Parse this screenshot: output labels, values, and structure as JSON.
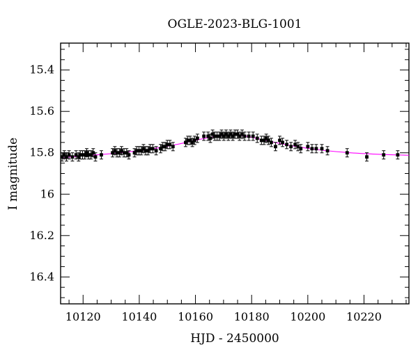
{
  "chart_data": {
    "type": "scatter",
    "title": "OGLE-2023-BLG-1001",
    "xlabel": "HJD - 2450000",
    "ylabel": "I magnitude",
    "xlim": [
      10112,
      10236
    ],
    "ylim": [
      16.53,
      15.27
    ],
    "y_inverted": true,
    "grid": false,
    "xticks": [
      10120,
      10140,
      10160,
      10180,
      10200,
      10220
    ],
    "yticks": [
      15.4,
      15.6,
      15.8,
      16,
      16.2,
      16.4
    ],
    "xtick_labels": [
      "10120",
      "10140",
      "10160",
      "10180",
      "10200",
      "10220"
    ],
    "ytick_labels": [
      "15.4",
      "15.6",
      "15.8",
      "16",
      "16.2",
      "16.4"
    ],
    "colors": {
      "points": "#000000",
      "model": "#ff00ff"
    },
    "series": [
      {
        "type": "scatter",
        "x": [
          10112.5,
          10113.3,
          10114.1,
          10115.0,
          10116.2,
          10117.5,
          10118.4,
          10119.0,
          10119.8,
          10120.6,
          10121.3,
          10122.0,
          10122.8,
          10123.6,
          10124.4,
          10126.5,
          10130.5,
          10131.3,
          10132.1,
          10132.9,
          10133.7,
          10134.6,
          10135.5,
          10136.3,
          10138.3,
          10139.1,
          10139.9,
          10140.7,
          10141.5,
          10142.3,
          10143.1,
          10143.9,
          10144.8,
          10146.0,
          10147.6,
          10148.4,
          10149.2,
          10150.0,
          10150.9,
          10152.0,
          10156.5,
          10157.3,
          10158.1,
          10158.9,
          10159.7,
          10160.7,
          10163.0,
          10164.5,
          10165.3,
          10166.1,
          10166.9,
          10167.7,
          10168.5,
          10169.3,
          10170.1,
          10170.9,
          10171.7,
          10172.5,
          10173.3,
          10174.1,
          10174.9,
          10175.7,
          10176.6,
          10177.5,
          10179.0,
          10180.5,
          10182.0,
          10183.5,
          10184.4,
          10185.2,
          10186.0,
          10187.0,
          10188.5,
          10190.0,
          10191.0,
          10192.5,
          10194.0,
          10195.5,
          10196.5,
          10197.5,
          10200.0,
          10201.5,
          10203.0,
          10205.0,
          10207.0,
          10214.0,
          10221.0,
          10227.0,
          10232.0
        ],
        "y": [
          15.82,
          15.81,
          15.82,
          15.81,
          15.82,
          15.81,
          15.82,
          15.81,
          15.81,
          15.81,
          15.8,
          15.81,
          15.81,
          15.8,
          15.82,
          15.81,
          15.8,
          15.79,
          15.8,
          15.8,
          15.79,
          15.8,
          15.8,
          15.81,
          15.8,
          15.79,
          15.79,
          15.79,
          15.78,
          15.79,
          15.79,
          15.78,
          15.78,
          15.79,
          15.78,
          15.77,
          15.77,
          15.76,
          15.76,
          15.77,
          15.75,
          15.74,
          15.74,
          15.75,
          15.74,
          15.73,
          15.72,
          15.72,
          15.73,
          15.71,
          15.72,
          15.72,
          15.72,
          15.71,
          15.72,
          15.71,
          15.72,
          15.71,
          15.72,
          15.71,
          15.71,
          15.72,
          15.71,
          15.72,
          15.72,
          15.72,
          15.73,
          15.74,
          15.74,
          15.73,
          15.74,
          15.75,
          15.77,
          15.74,
          15.75,
          15.76,
          15.77,
          15.76,
          15.77,
          15.78,
          15.77,
          15.78,
          15.78,
          15.78,
          15.79,
          15.8,
          15.82,
          15.81,
          15.81
        ]
      },
      {
        "type": "line",
        "model": true,
        "color": "#ff00ff",
        "x": [
          10112,
          10120,
          10130,
          10140,
          10150,
          10160,
          10165,
          10170,
          10175,
          10180,
          10185,
          10190,
          10200,
          10210,
          10220,
          10236
        ],
        "y": [
          15.825,
          15.815,
          15.805,
          15.79,
          15.77,
          15.74,
          15.725,
          15.715,
          15.713,
          15.725,
          15.74,
          15.755,
          15.78,
          15.795,
          15.805,
          15.812
        ]
      }
    ]
  }
}
